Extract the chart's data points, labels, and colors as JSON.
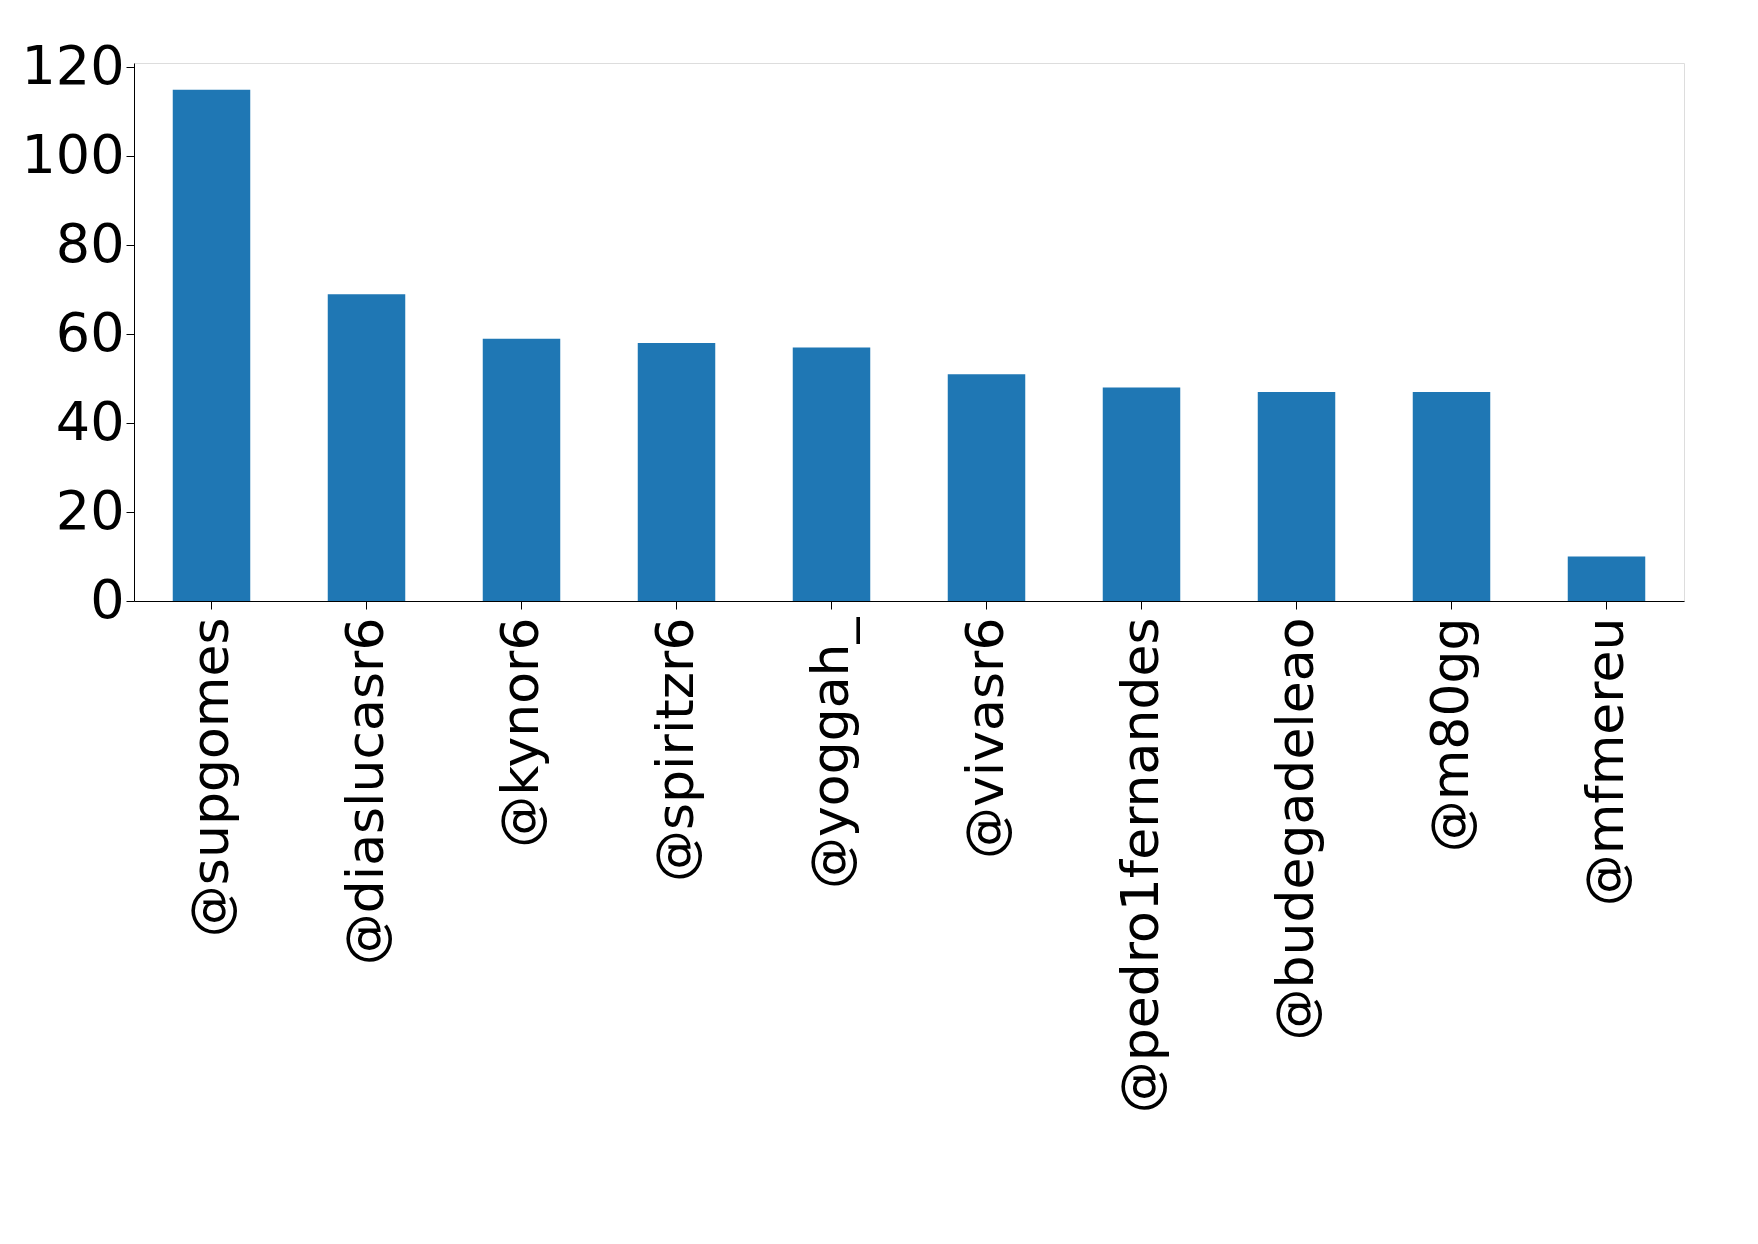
{
  "chart_data": {
    "type": "bar",
    "categories": [
      "@supgomes",
      "@diaslucasr6",
      "@kynor6",
      "@spiritzr6",
      "@yoggah_",
      "@vivasr6",
      "@pedro1fernandes",
      "@budegadeleao",
      "@m80gg",
      "@mfmereu"
    ],
    "values": [
      115,
      69,
      59,
      58,
      57,
      51,
      48,
      47,
      47,
      10
    ],
    "color": "#1f77b4",
    "ylim": [
      0,
      121
    ],
    "yticks": [
      0,
      20,
      40,
      60,
      80,
      100,
      120
    ],
    "grid": false
  }
}
